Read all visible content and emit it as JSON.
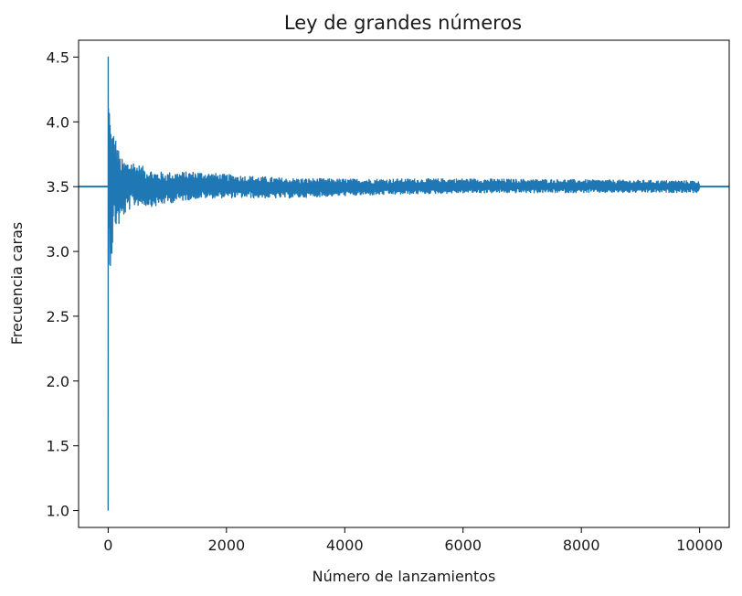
{
  "chart_data": {
    "type": "line",
    "title": "Ley de grandes números",
    "xlabel": "Número de lanzamientos",
    "ylabel": "Frecuencia caras",
    "xlim": [
      -500,
      10500
    ],
    "ylim": [
      0.87,
      4.63
    ],
    "xticks": [
      0,
      2000,
      4000,
      6000,
      8000,
      10000
    ],
    "xtick_labels": [
      "0",
      "2000",
      "4000",
      "6000",
      "8000",
      "10000"
    ],
    "yticks": [
      1.0,
      1.5,
      2.0,
      2.5,
      3.0,
      3.5,
      4.0,
      4.5
    ],
    "ytick_labels": [
      "1.0",
      "1.5",
      "2.0",
      "2.5",
      "3.0",
      "3.5",
      "4.0",
      "4.5"
    ],
    "grid": false,
    "color": "#1f77b4",
    "series": [
      {
        "kind": "running-average",
        "x_start": 0,
        "x_end": 10000,
        "values_sampled": [
          [
            0,
            1.0
          ],
          [
            1,
            4.5
          ],
          [
            2,
            3.2
          ],
          [
            5,
            4.1
          ],
          [
            10,
            2.9
          ],
          [
            20,
            3.9
          ],
          [
            50,
            3.0
          ],
          [
            100,
            3.85
          ],
          [
            200,
            3.3
          ],
          [
            400,
            3.65
          ],
          [
            800,
            3.38
          ],
          [
            1500,
            3.58
          ],
          [
            3000,
            3.42
          ],
          [
            6000,
            3.54
          ],
          [
            10000,
            3.5
          ]
        ],
        "envelope": [
          [
            5,
            0.7
          ],
          [
            100,
            0.38
          ],
          [
            250,
            0.22
          ],
          [
            500,
            0.16
          ],
          [
            1000,
            0.12
          ],
          [
            2000,
            0.09
          ],
          [
            4000,
            0.065
          ],
          [
            6000,
            0.055
          ],
          [
            8000,
            0.05
          ],
          [
            10000,
            0.045
          ]
        ]
      },
      {
        "kind": "reference-line",
        "y": 3.5
      }
    ]
  }
}
